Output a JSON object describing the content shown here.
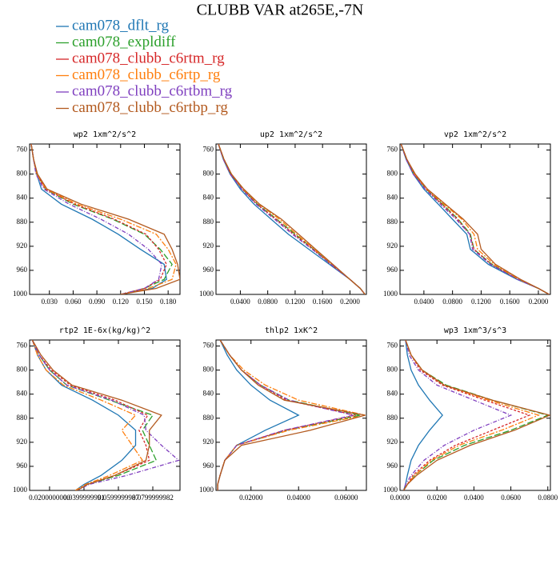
{
  "title": "CLUBB VAR at265E,-7N",
  "legend": [
    {
      "name": "cam078_dflt_rg",
      "color": "#1f77b4"
    },
    {
      "name": "cam078_expldiff",
      "color": "#2ca02c"
    },
    {
      "name": "cam078_clubb_c6rtm_rg",
      "color": "#d62728"
    },
    {
      "name": "cam078_clubb_c6rtp_rg",
      "color": "#ff7f0e"
    },
    {
      "name": "cam078_clubb_c6rtbm_rg",
      "color": "#7f3fbf"
    },
    {
      "name": "cam078_clubb_c6rtbp_rg",
      "color": "#b35a1f"
    }
  ],
  "chart_data": [
    {
      "type": "line",
      "title": "wp2   1xm^2/s^2",
      "y": [
        750,
        775,
        800,
        825,
        850,
        875,
        900,
        925,
        950,
        975,
        990,
        1000
      ],
      "ylim": [
        1000,
        750
      ],
      "yticks": [
        760,
        800,
        840,
        880,
        920,
        960,
        1000
      ],
      "xlim": [
        0.005,
        0.195
      ],
      "xticks": [
        {
          "value": 0.03,
          "label": "0.030"
        },
        {
          "value": 0.06,
          "label": "0.060"
        },
        {
          "value": 0.09,
          "label": "0.090"
        },
        {
          "value": 0.12,
          "label": "0.120"
        },
        {
          "value": 0.15,
          "label": "0.150"
        },
        {
          "value": 0.18,
          "label": "0.180"
        }
      ],
      "series": [
        {
          "values": [
            0.007,
            0.01,
            0.014,
            0.02,
            0.045,
            0.084,
            0.117,
            0.145,
            0.175,
            0.178,
            0.16,
            0.12
          ]
        },
        {
          "values": [
            0.007,
            0.01,
            0.014,
            0.025,
            0.06,
            0.11,
            0.15,
            0.17,
            0.185,
            0.175,
            0.15,
            0.12
          ]
        },
        {
          "values": [
            0.007,
            0.01,
            0.014,
            0.025,
            0.062,
            0.112,
            0.152,
            0.168,
            0.178,
            0.17,
            0.15,
            0.12
          ]
        },
        {
          "values": [
            0.007,
            0.01,
            0.014,
            0.026,
            0.065,
            0.12,
            0.165,
            0.18,
            0.19,
            0.185,
            0.155,
            0.12
          ]
        },
        {
          "values": [
            0.007,
            0.01,
            0.013,
            0.023,
            0.055,
            0.095,
            0.13,
            0.155,
            0.172,
            0.168,
            0.15,
            0.12
          ]
        },
        {
          "values": [
            0.007,
            0.01,
            0.015,
            0.027,
            0.07,
            0.13,
            0.175,
            0.185,
            0.192,
            0.195,
            0.165,
            0.12
          ]
        }
      ]
    },
    {
      "type": "line",
      "title": "up2   1xm^2/s^2",
      "y": [
        750,
        775,
        800,
        825,
        850,
        875,
        900,
        925,
        950,
        975,
        990,
        1000
      ],
      "ylim": [
        1000,
        750
      ],
      "yticks": [
        760,
        800,
        840,
        880,
        920,
        960,
        1000
      ],
      "xlim": [
        0.0045,
        0.224
      ],
      "xticks": [
        {
          "value": 0.04,
          "label": "0.0400"
        },
        {
          "value": 0.08,
          "label": "0.0800"
        },
        {
          "value": 0.12,
          "label": "0.1200"
        },
        {
          "value": 0.16,
          "label": "0.1600"
        },
        {
          "value": 0.2,
          "label": "0.2000"
        }
      ],
      "series": [
        {
          "values": [
            0.008,
            0.015,
            0.025,
            0.04,
            0.06,
            0.085,
            0.11,
            0.14,
            0.17,
            0.2,
            0.215,
            0.222
          ]
        },
        {
          "values": [
            0.008,
            0.016,
            0.026,
            0.043,
            0.065,
            0.093,
            0.12,
            0.147,
            0.173,
            0.2,
            0.215,
            0.222
          ]
        },
        {
          "values": [
            0.008,
            0.016,
            0.026,
            0.043,
            0.064,
            0.092,
            0.118,
            0.146,
            0.172,
            0.2,
            0.215,
            0.222
          ]
        },
        {
          "values": [
            0.008,
            0.016,
            0.027,
            0.044,
            0.067,
            0.097,
            0.122,
            0.148,
            0.174,
            0.2,
            0.215,
            0.222
          ]
        },
        {
          "values": [
            0.008,
            0.015,
            0.025,
            0.042,
            0.063,
            0.09,
            0.116,
            0.145,
            0.172,
            0.2,
            0.215,
            0.222
          ]
        },
        {
          "values": [
            0.008,
            0.016,
            0.027,
            0.045,
            0.068,
            0.1,
            0.125,
            0.15,
            0.175,
            0.2,
            0.215,
            0.222
          ]
        }
      ]
    },
    {
      "type": "line",
      "title": "vp2   1xm^2/s^2",
      "y": [
        750,
        775,
        800,
        825,
        850,
        875,
        900,
        925,
        950,
        975,
        990,
        1000
      ],
      "ylim": [
        1000,
        750
      ],
      "yticks": [
        760,
        800,
        840,
        880,
        920,
        960,
        1000
      ],
      "xlim": [
        0.0066,
        0.2168
      ],
      "xticks": [
        {
          "value": 0.04,
          "label": "0.0400"
        },
        {
          "value": 0.08,
          "label": "0.0800"
        },
        {
          "value": 0.12,
          "label": "0.1200"
        },
        {
          "value": 0.16,
          "label": "0.1600"
        },
        {
          "value": 0.2,
          "label": "0.2000"
        }
      ],
      "series": [
        {
          "values": [
            0.008,
            0.015,
            0.025,
            0.04,
            0.06,
            0.08,
            0.1,
            0.105,
            0.13,
            0.17,
            0.2,
            0.215
          ]
        },
        {
          "values": [
            0.008,
            0.016,
            0.026,
            0.043,
            0.066,
            0.088,
            0.105,
            0.11,
            0.135,
            0.172,
            0.2,
            0.215
          ]
        },
        {
          "values": [
            0.008,
            0.016,
            0.026,
            0.043,
            0.065,
            0.087,
            0.104,
            0.11,
            0.134,
            0.172,
            0.2,
            0.215
          ]
        },
        {
          "values": [
            0.008,
            0.016,
            0.027,
            0.044,
            0.068,
            0.093,
            0.11,
            0.115,
            0.138,
            0.173,
            0.2,
            0.215
          ]
        },
        {
          "values": [
            0.008,
            0.015,
            0.025,
            0.042,
            0.063,
            0.085,
            0.104,
            0.108,
            0.133,
            0.171,
            0.2,
            0.215
          ]
        },
        {
          "values": [
            0.008,
            0.016,
            0.028,
            0.045,
            0.07,
            0.095,
            0.115,
            0.12,
            0.14,
            0.175,
            0.2,
            0.215
          ]
        }
      ]
    },
    {
      "type": "line",
      "title": "rtp2   1E-6x(kg/kg)^2",
      "y": [
        750,
        775,
        800,
        825,
        850,
        875,
        900,
        925,
        950,
        975,
        990,
        1000
      ],
      "ylim": [
        1000,
        750
      ],
      "yticks": [
        760,
        800,
        840,
        880,
        920,
        960,
        1000
      ],
      "xlim": [
        0.0084,
        0.0958
      ],
      "xticks": [
        {
          "value": 0.02,
          "label": "0.0200000000"
        },
        {
          "value": 0.04,
          "label": "0.0399999991"
        },
        {
          "value": 0.06,
          "label": "0.0599999987"
        },
        {
          "value": 0.08,
          "label": "0.0799999982"
        }
      ],
      "series": [
        {
          "values": [
            0.01,
            0.013,
            0.018,
            0.027,
            0.045,
            0.06,
            0.07,
            0.07,
            0.062,
            0.05,
            0.04,
            0.035
          ]
        },
        {
          "values": [
            0.01,
            0.014,
            0.02,
            0.03,
            0.055,
            0.08,
            0.074,
            0.078,
            0.082,
            0.06,
            0.042,
            0.036
          ]
        },
        {
          "values": [
            0.01,
            0.014,
            0.021,
            0.032,
            0.058,
            0.077,
            0.072,
            0.076,
            0.078,
            0.058,
            0.042,
            0.036
          ]
        },
        {
          "values": [
            0.01,
            0.013,
            0.018,
            0.028,
            0.05,
            0.07,
            0.062,
            0.068,
            0.074,
            0.055,
            0.041,
            0.035
          ]
        },
        {
          "values": [
            0.01,
            0.014,
            0.02,
            0.03,
            0.056,
            0.075,
            0.076,
            0.085,
            0.095,
            0.065,
            0.043,
            0.036
          ]
        },
        {
          "values": [
            0.01,
            0.015,
            0.022,
            0.033,
            0.062,
            0.085,
            0.078,
            0.078,
            0.076,
            0.058,
            0.042,
            0.036
          ]
        }
      ]
    },
    {
      "type": "line",
      "title": "thlp2   1xK^2",
      "y": [
        750,
        775,
        800,
        825,
        850,
        875,
        900,
        925,
        950,
        975,
        990,
        1000
      ],
      "ylim": [
        1000,
        750
      ],
      "yticks": [
        760,
        800,
        840,
        880,
        920,
        960,
        1000
      ],
      "xlim": [
        0.0053,
        0.0685
      ],
      "xticks": [
        {
          "value": 0.02,
          "label": "0.02000"
        },
        {
          "value": 0.04,
          "label": "0.04000"
        },
        {
          "value": 0.06,
          "label": "0.06000"
        }
      ],
      "series": [
        {
          "values": [
            0.007,
            0.01,
            0.014,
            0.02,
            0.028,
            0.04,
            0.026,
            0.014,
            0.009,
            0.007,
            0.006,
            0.006
          ]
        },
        {
          "values": [
            0.007,
            0.011,
            0.016,
            0.024,
            0.036,
            0.066,
            0.035,
            0.014,
            0.009,
            0.007,
            0.006,
            0.006
          ]
        },
        {
          "values": [
            0.007,
            0.011,
            0.016,
            0.024,
            0.035,
            0.064,
            0.034,
            0.014,
            0.009,
            0.007,
            0.006,
            0.006
          ]
        },
        {
          "values": [
            0.007,
            0.011,
            0.017,
            0.026,
            0.04,
            0.068,
            0.036,
            0.014,
            0.009,
            0.007,
            0.006,
            0.006
          ]
        },
        {
          "values": [
            0.007,
            0.011,
            0.016,
            0.024,
            0.036,
            0.063,
            0.034,
            0.014,
            0.009,
            0.007,
            0.006,
            0.006
          ]
        },
        {
          "values": [
            0.007,
            0.011,
            0.016,
            0.023,
            0.034,
            0.068,
            0.045,
            0.016,
            0.009,
            0.007,
            0.006,
            0.006
          ]
        }
      ]
    },
    {
      "type": "line",
      "title": "wp3   1xm^3/s^3",
      "y": [
        750,
        775,
        800,
        825,
        850,
        875,
        900,
        925,
        950,
        975,
        990,
        1000
      ],
      "ylim": [
        1000,
        750
      ],
      "yticks": [
        760,
        800,
        840,
        880,
        920,
        960,
        1000
      ],
      "xlim": [
        0,
        0.0814
      ],
      "xticks": [
        {
          "value": 0,
          "label": "0.0000"
        },
        {
          "value": 0.02,
          "label": "0.0200"
        },
        {
          "value": 0.04,
          "label": "0.0400"
        },
        {
          "value": 0.06,
          "label": "0.0600"
        },
        {
          "value": 0.08,
          "label": "0.0800"
        }
      ],
      "series": [
        {
          "values": [
            0.003,
            0.004,
            0.006,
            0.01,
            0.016,
            0.023,
            0.016,
            0.01,
            0.006,
            0.004,
            0.003,
            0.002
          ]
        },
        {
          "values": [
            0.003,
            0.006,
            0.012,
            0.025,
            0.05,
            0.08,
            0.06,
            0.035,
            0.018,
            0.008,
            0.004,
            0.002
          ]
        },
        {
          "values": [
            0.003,
            0.006,
            0.011,
            0.023,
            0.046,
            0.07,
            0.05,
            0.03,
            0.016,
            0.007,
            0.004,
            0.002
          ]
        },
        {
          "values": [
            0.003,
            0.006,
            0.012,
            0.024,
            0.048,
            0.075,
            0.055,
            0.032,
            0.017,
            0.008,
            0.004,
            0.002
          ]
        },
        {
          "values": [
            0.003,
            0.005,
            0.01,
            0.02,
            0.04,
            0.06,
            0.04,
            0.024,
            0.013,
            0.006,
            0.003,
            0.002
          ]
        },
        {
          "values": [
            0.003,
            0.006,
            0.012,
            0.024,
            0.05,
            0.081,
            0.062,
            0.038,
            0.02,
            0.009,
            0.004,
            0.002
          ]
        }
      ]
    }
  ]
}
